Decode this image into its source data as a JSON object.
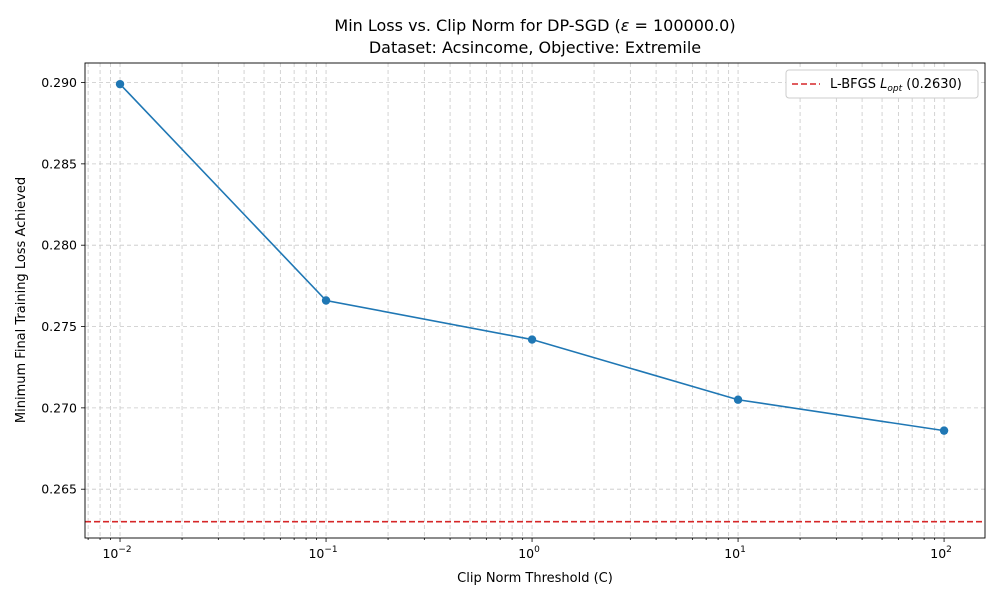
{
  "chart_data": {
    "type": "line",
    "title_prefix": "Min Loss vs. Clip Norm for DP-SGD (",
    "title_eps": "ε",
    "title_eq": " = 100000.0)",
    "title_suffix": ")",
    "subtitle": "Dataset: Acsincome, Objective: Extremile",
    "xlabel": "Clip Norm Threshold (C)",
    "ylabel": "Minimum Final Training Loss Achieved",
    "xscale": "log",
    "xlim": [
      0.00676,
      158
    ],
    "ylim": [
      0.262,
      0.2912
    ],
    "x": [
      0.01,
      0.1,
      1,
      10,
      100
    ],
    "y": [
      0.2899,
      0.2766,
      0.2742,
      0.2705,
      0.2686
    ],
    "x_ticks": [
      {
        "value": 0.01,
        "base": "10",
        "exp": "−2"
      },
      {
        "value": 0.1,
        "base": "10",
        "exp": "−1"
      },
      {
        "value": 1,
        "base": "10",
        "exp": "0"
      },
      {
        "value": 10,
        "base": "10",
        "exp": "1"
      },
      {
        "value": 100,
        "base": "10",
        "exp": "2"
      }
    ],
    "y_ticks": [
      {
        "value": 0.265,
        "label": "0.265"
      },
      {
        "value": 0.27,
        "label": "0.270"
      },
      {
        "value": 0.275,
        "label": "0.275"
      },
      {
        "value": 0.28,
        "label": "0.280"
      },
      {
        "value": 0.285,
        "label": "0.285"
      },
      {
        "value": 0.29,
        "label": "0.290"
      }
    ],
    "reference_line": {
      "value": 0.263,
      "label_prefix": "L-BFGS ",
      "label_symbol": "L",
      "label_sub": "opt",
      "label_suffix": " (0.2630)",
      "color": "#d62728"
    },
    "series_color": "#1f77b4",
    "grid": true,
    "legend_position": "top-right"
  }
}
